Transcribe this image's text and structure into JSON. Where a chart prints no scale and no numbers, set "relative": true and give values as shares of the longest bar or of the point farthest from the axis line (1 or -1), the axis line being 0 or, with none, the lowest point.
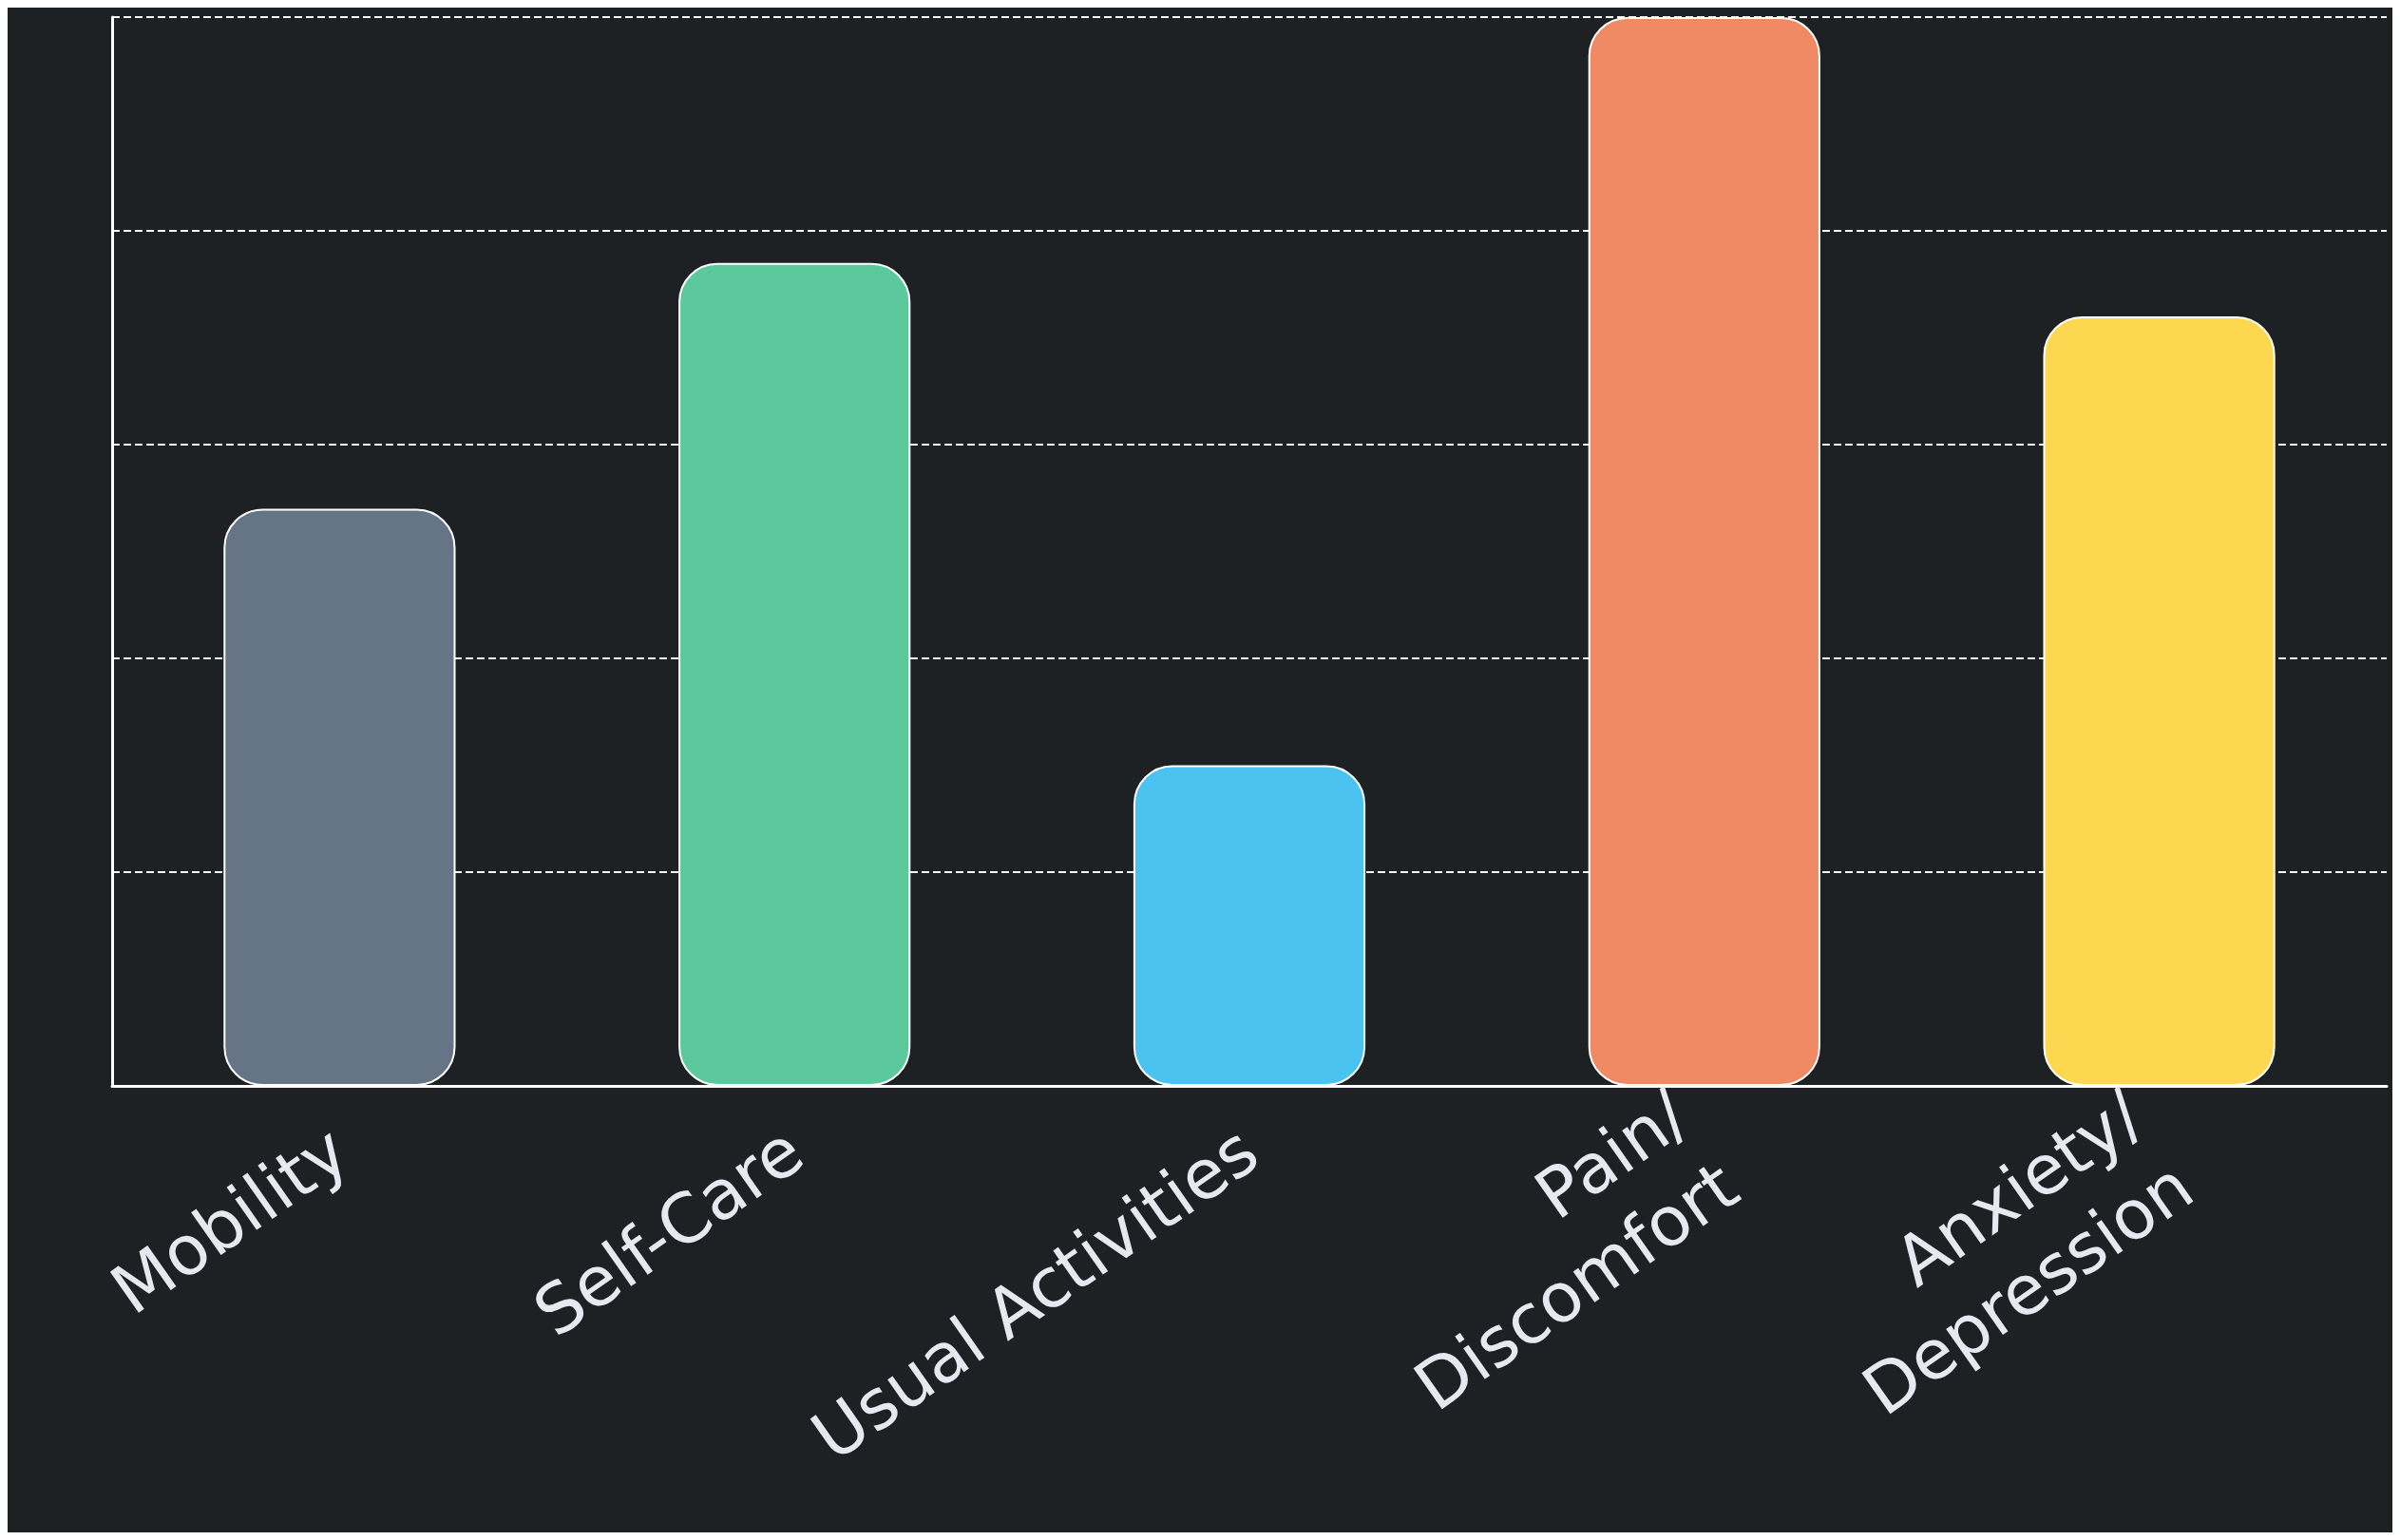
{
  "chart_data": {
    "type": "bar",
    "relative": true,
    "categories": [
      "Mobility",
      "Self-Care",
      "Usual Activities",
      "Pain/Discomfort",
      "Anxiety/Depression"
    ],
    "values": [
      0.54,
      0.77,
      0.3,
      1,
      0.72
    ],
    "colors": [
      "#667585",
      "#5cc99c",
      "#4bc3f0",
      "#f08a64",
      "#fcd74f"
    ],
    "grid": "y"
  }
}
